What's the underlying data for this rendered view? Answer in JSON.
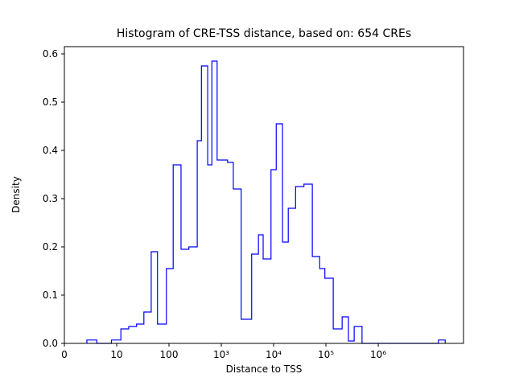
{
  "figure": {
    "background_color": "#ffffff",
    "sample_size": 654
  },
  "chart_data": {
    "type": "bar",
    "subtype": "step-histogram",
    "title": "Histogram of CRE-TSS distance, based on: 654 CREs",
    "xlabel": "Distance to TSS",
    "ylabel": "Density",
    "x_scale": "symlog",
    "grid": false,
    "legend": "none",
    "line_color": "#0000ff",
    "axis_color": "#000000",
    "xlim_log10": [
      0,
      7.63
    ],
    "ylim": [
      0,
      0.615
    ],
    "x_ticks": [
      {
        "log10": 0,
        "label": "0"
      },
      {
        "log10": 1,
        "label": "10"
      },
      {
        "log10": 2,
        "label": "100"
      },
      {
        "log10": 3,
        "label": "10³"
      },
      {
        "log10": 4,
        "label": "10⁴"
      },
      {
        "log10": 5,
        "label": "10⁵"
      },
      {
        "log10": 6,
        "label": "10⁶"
      }
    ],
    "y_ticks": [
      {
        "value": 0.0,
        "label": "0.0"
      },
      {
        "value": 0.1,
        "label": "0.1"
      },
      {
        "value": 0.2,
        "label": "0.2"
      },
      {
        "value": 0.3,
        "label": "0.3"
      },
      {
        "value": 0.4,
        "label": "0.4"
      },
      {
        "value": 0.5,
        "label": "0.5"
      },
      {
        "value": 0.6,
        "label": "0.6"
      }
    ],
    "bin_edges_log10": [
      0.43,
      0.62,
      0.9,
      1.08,
      1.23,
      1.38,
      1.52,
      1.66,
      1.78,
      1.95,
      2.08,
      2.23,
      2.38,
      2.54,
      2.62,
      2.74,
      2.82,
      2.92,
      3.12,
      3.23,
      3.38,
      3.58,
      3.71,
      3.8,
      3.95,
      4.05,
      4.17,
      4.28,
      4.42,
      4.58,
      4.74,
      4.88,
      4.98,
      5.14,
      5.31,
      5.43,
      5.54,
      5.69,
      7.15,
      7.28
    ],
    "densities": [
      0.007,
      0,
      0.007,
      0.03,
      0.035,
      0.04,
      0.065,
      0.19,
      0.04,
      0.155,
      0.37,
      0.195,
      0.2,
      0.42,
      0.575,
      0.37,
      0.585,
      0.38,
      0.375,
      0.32,
      0.05,
      0.185,
      0.225,
      0.175,
      0.36,
      0.455,
      0.21,
      0.28,
      0.325,
      0.33,
      0.18,
      0.155,
      0.135,
      0.03,
      0.055,
      0.005,
      0.035,
      0,
      0.007
    ]
  }
}
